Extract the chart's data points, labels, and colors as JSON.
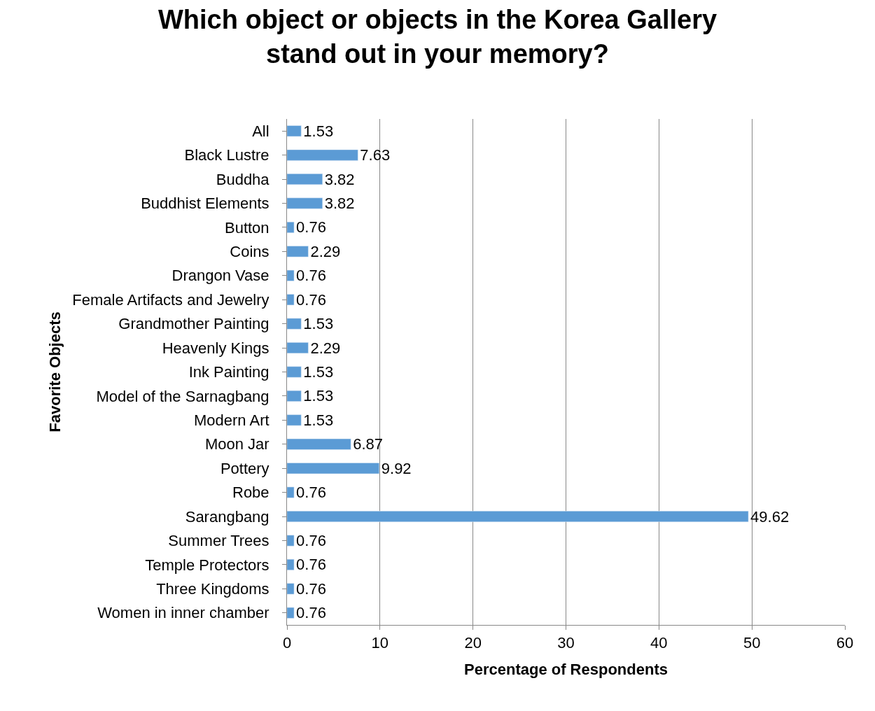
{
  "chart_data": {
    "type": "bar",
    "orientation": "horizontal",
    "title": "Which object or objects in the Korea Gallery\nstand out in your memory?",
    "xlabel": "Percentage of Respondents",
    "ylabel": "Favorite Objects",
    "categories": [
      "All",
      "Black Lustre",
      "Buddha",
      "Buddhist Elements",
      "Button",
      "Coins",
      "Drangon Vase",
      "Female Artifacts and Jewelry",
      "Grandmother Painting",
      "Heavenly Kings",
      "Ink Painting",
      "Model of the Sarnagbang",
      "Modern Art",
      "Moon Jar",
      "Pottery",
      "Robe",
      "Sarangbang",
      "Summer Trees",
      "Temple Protectors",
      "Three Kingdoms",
      "Women in inner chamber"
    ],
    "values": [
      1.53,
      7.63,
      3.82,
      3.82,
      0.76,
      2.29,
      0.76,
      0.76,
      1.53,
      2.29,
      1.53,
      1.53,
      1.53,
      6.87,
      9.92,
      0.76,
      49.62,
      0.76,
      0.76,
      0.76,
      0.76
    ],
    "color": "#5b9bd5",
    "data_labels": true,
    "xlim": [
      0,
      60
    ],
    "xticks": [
      0,
      10,
      20,
      30,
      40,
      50,
      60
    ],
    "grid": "x"
  }
}
